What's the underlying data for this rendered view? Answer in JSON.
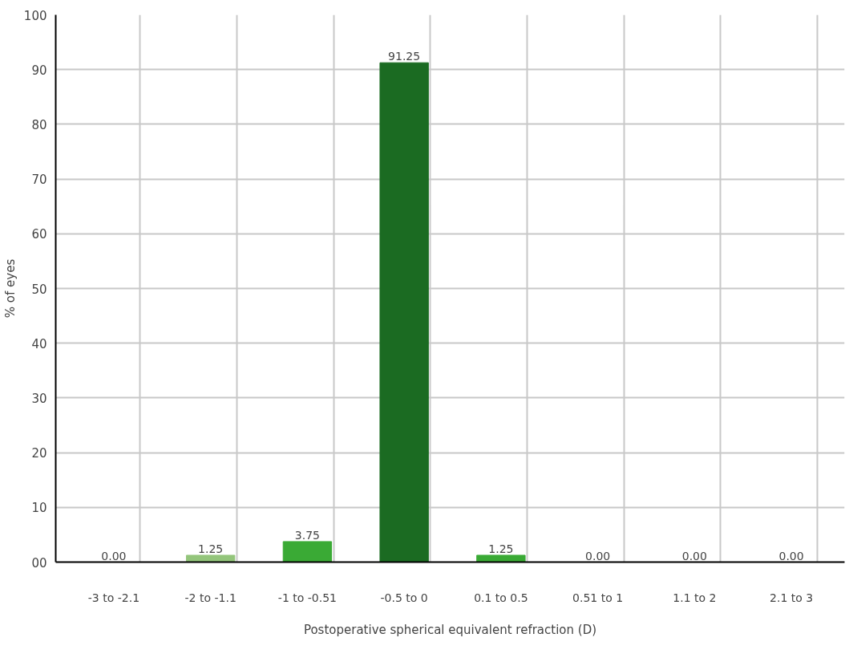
{
  "chart_data": {
    "type": "bar",
    "xlabel": "Postoperative spherical equivalent refraction (D)",
    "ylabel": "% of eyes",
    "categories": [
      "-3 to -2.1",
      "-2 to -1.1",
      "-1 to -0.51",
      "-0.5 to 0",
      "0.1 to 0.5",
      "0.51 to 1",
      "1.1 to 2",
      "2.1 to 3"
    ],
    "values": [
      0,
      1.25,
      3.75,
      91.25,
      1.25,
      0,
      0,
      0
    ],
    "colors": [
      "#3aaa35",
      "#93c57b",
      "#3aaa35",
      "#1b6b22",
      "#3aaa35",
      "#3aaa35",
      "#3aaa35",
      "#3aaa35"
    ],
    "value_labels": [
      "0.00",
      "1.25",
      "3.75",
      "91.25",
      "1.25",
      "0.00",
      "0.00",
      "0.00"
    ],
    "ylim": [
      0,
      100
    ],
    "yticks": [
      {
        "value": 0,
        "label": "00"
      },
      10,
      20,
      30,
      40,
      50,
      60,
      70,
      80,
      90,
      100
    ],
    "grid": true
  }
}
